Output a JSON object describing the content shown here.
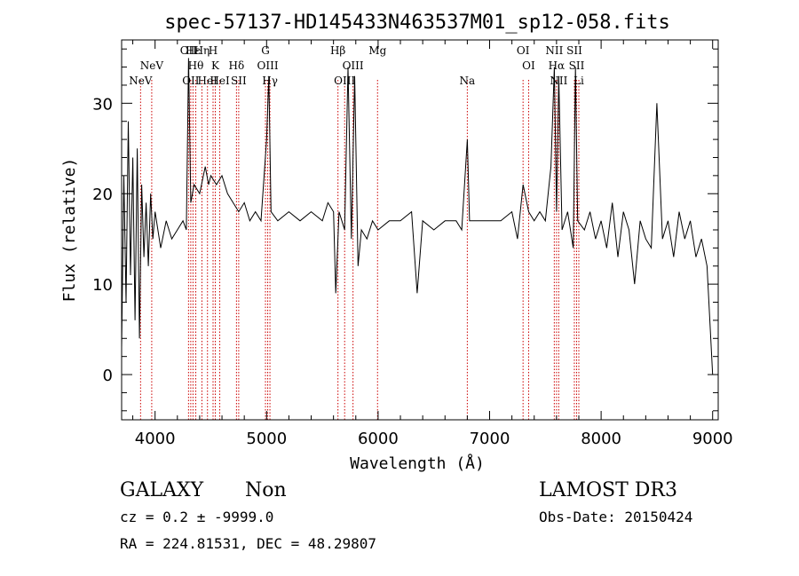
{
  "chart_data": {
    "type": "line",
    "title": "spec-57137-HD145433N463537M01_sp12-058.fits",
    "xlabel": "Wavelength (Å)",
    "ylabel": "Flux (relative)",
    "xlim": [
      3700,
      9050
    ],
    "ylim": [
      -5,
      37
    ],
    "x_ticks": [
      "4000",
      "5000",
      "6000",
      "7000",
      "8000",
      "9000"
    ],
    "y_ticks": [
      "0",
      "10",
      "20",
      "30"
    ],
    "line_color": "#000000",
    "marker_color": "#cc0000",
    "series": [
      {
        "values": [
          [
            3700,
            3
          ],
          [
            3720,
            22
          ],
          [
            3740,
            8
          ],
          [
            3760,
            28
          ],
          [
            3780,
            11
          ],
          [
            3800,
            24
          ],
          [
            3820,
            6
          ],
          [
            3840,
            25
          ],
          [
            3860,
            4
          ],
          [
            3880,
            21
          ],
          [
            3900,
            13
          ],
          [
            3920,
            19
          ],
          [
            3940,
            12
          ],
          [
            3960,
            20
          ],
          [
            3980,
            15
          ],
          [
            4000,
            18
          ],
          [
            4050,
            14
          ],
          [
            4100,
            17
          ],
          [
            4150,
            15
          ],
          [
            4200,
            16
          ],
          [
            4250,
            17
          ],
          [
            4280,
            16
          ],
          [
            4300,
            35
          ],
          [
            4320,
            19
          ],
          [
            4350,
            21
          ],
          [
            4400,
            20
          ],
          [
            4450,
            23
          ],
          [
            4480,
            21
          ],
          [
            4500,
            22
          ],
          [
            4550,
            21
          ],
          [
            4600,
            22
          ],
          [
            4650,
            20
          ],
          [
            4700,
            19
          ],
          [
            4750,
            18
          ],
          [
            4800,
            19
          ],
          [
            4850,
            17
          ],
          [
            4900,
            18
          ],
          [
            4950,
            17
          ],
          [
            5000,
            26
          ],
          [
            5020,
            33
          ],
          [
            5040,
            18
          ],
          [
            5100,
            17
          ],
          [
            5200,
            18
          ],
          [
            5300,
            17
          ],
          [
            5400,
            18
          ],
          [
            5500,
            17
          ],
          [
            5550,
            19
          ],
          [
            5600,
            18
          ],
          [
            5620,
            9
          ],
          [
            5650,
            18
          ],
          [
            5700,
            16
          ],
          [
            5730,
            34
          ],
          [
            5760,
            15
          ],
          [
            5790,
            33
          ],
          [
            5820,
            12
          ],
          [
            5850,
            16
          ],
          [
            5900,
            15
          ],
          [
            5950,
            17
          ],
          [
            6000,
            16
          ],
          [
            6100,
            17
          ],
          [
            6200,
            17
          ],
          [
            6300,
            18
          ],
          [
            6350,
            9
          ],
          [
            6400,
            17
          ],
          [
            6500,
            16
          ],
          [
            6600,
            17
          ],
          [
            6700,
            17
          ],
          [
            6750,
            16
          ],
          [
            6800,
            26
          ],
          [
            6820,
            17
          ],
          [
            6900,
            17
          ],
          [
            7000,
            17
          ],
          [
            7100,
            17
          ],
          [
            7200,
            18
          ],
          [
            7250,
            15
          ],
          [
            7300,
            21
          ],
          [
            7350,
            18
          ],
          [
            7400,
            17
          ],
          [
            7450,
            18
          ],
          [
            7500,
            17
          ],
          [
            7550,
            23
          ],
          [
            7580,
            34
          ],
          [
            7600,
            18
          ],
          [
            7620,
            33
          ],
          [
            7650,
            16
          ],
          [
            7700,
            18
          ],
          [
            7750,
            14
          ],
          [
            7770,
            34
          ],
          [
            7790,
            17
          ],
          [
            7850,
            16
          ],
          [
            7900,
            18
          ],
          [
            7950,
            15
          ],
          [
            8000,
            17
          ],
          [
            8050,
            14
          ],
          [
            8100,
            19
          ],
          [
            8150,
            13
          ],
          [
            8200,
            18
          ],
          [
            8250,
            16
          ],
          [
            8300,
            10
          ],
          [
            8350,
            17
          ],
          [
            8400,
            15
          ],
          [
            8450,
            14
          ],
          [
            8500,
            30
          ],
          [
            8550,
            15
          ],
          [
            8600,
            17
          ],
          [
            8650,
            13
          ],
          [
            8700,
            18
          ],
          [
            8750,
            15
          ],
          [
            8800,
            17
          ],
          [
            8850,
            13
          ],
          [
            8900,
            15
          ],
          [
            8950,
            12
          ],
          [
            9000,
            0
          ]
        ]
      }
    ],
    "lines": [
      {
        "label": "NeV",
        "x": 3870,
        "row": 3
      },
      {
        "label": "NeV",
        "x": 3970,
        "row": 2
      },
      {
        "label": "OII",
        "x": 4300,
        "row": 1
      },
      {
        "label": "OII",
        "x": 4320,
        "row": 3
      },
      {
        "label": "Hε",
        "x": 4340,
        "row": 1
      },
      {
        "label": "Hθ",
        "x": 4365,
        "row": 2
      },
      {
        "label": "Hη",
        "x": 4420,
        "row": 1
      },
      {
        "label": "HeI",
        "x": 4470,
        "row": 3
      },
      {
        "label": "H",
        "x": 4520,
        "row": 1
      },
      {
        "label": "K",
        "x": 4540,
        "row": 2
      },
      {
        "label": "HeI",
        "x": 4580,
        "row": 3
      },
      {
        "label": "Hδ",
        "x": 4730,
        "row": 2
      },
      {
        "label": "SII",
        "x": 4750,
        "row": 3
      },
      {
        "label": "G",
        "x": 4990,
        "row": 1
      },
      {
        "label": "OIII",
        "x": 5010,
        "row": 2
      },
      {
        "label": "Hγ",
        "x": 5030,
        "row": 3
      },
      {
        "label": "Hβ",
        "x": 5640,
        "row": 1
      },
      {
        "label": "OIII",
        "x": 5700,
        "row": 3
      },
      {
        "label": "OIII",
        "x": 5775,
        "row": 2
      },
      {
        "label": "Mg",
        "x": 5995,
        "row": 1
      },
      {
        "label": "Na",
        "x": 6800,
        "row": 3
      },
      {
        "label": "OI",
        "x": 7300,
        "row": 1
      },
      {
        "label": "OI",
        "x": 7350,
        "row": 2
      },
      {
        "label": "NII",
        "x": 7580,
        "row": 1
      },
      {
        "label": "Hα",
        "x": 7600,
        "row": 2
      },
      {
        "label": "NII",
        "x": 7620,
        "row": 3
      },
      {
        "label": "SII",
        "x": 7760,
        "row": 1
      },
      {
        "label": "SII",
        "x": 7780,
        "row": 2
      },
      {
        "label": "Li",
        "x": 7800,
        "row": 3
      }
    ]
  },
  "footer": {
    "class_label": "GALAXY",
    "subclass_label": "Non",
    "cz_line": "cz = 0.2 ± -9999.0",
    "radec_line": "RA = 224.81531, DEC =  48.29807",
    "survey_label": "LAMOST DR3",
    "obs_date": "Obs-Date: 20150424"
  }
}
